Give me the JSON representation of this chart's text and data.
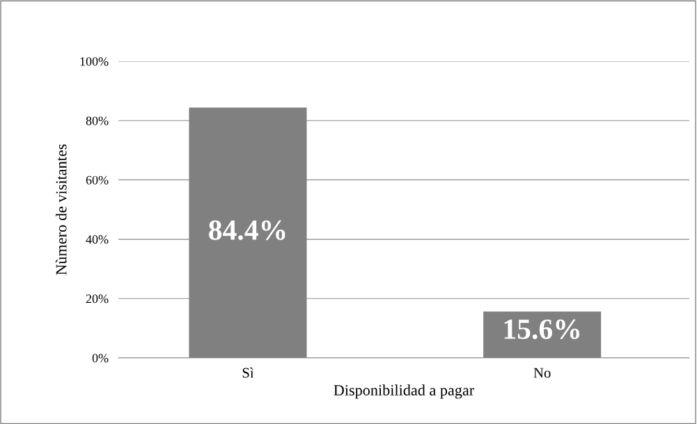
{
  "chart_data": {
    "type": "bar",
    "xlabel": "Disponibilidad a pagar",
    "ylabel": "Nùmero de visitantes",
    "categories": [
      "Sì",
      "No"
    ],
    "values": [
      84.4,
      15.6
    ],
    "color": "#808080",
    "value_labels": [
      "84.4%",
      "15.6%"
    ],
    "ylim": [
      0,
      100
    ],
    "yticks": [
      {
        "value": 0,
        "label": "0%"
      },
      {
        "value": 20,
        "label": "20%"
      },
      {
        "value": 40,
        "label": "40%"
      },
      {
        "value": 60,
        "label": "60%"
      },
      {
        "value": 80,
        "label": "80%"
      },
      {
        "value": 100,
        "label": "100%"
      }
    ],
    "grid": "y",
    "legend": false
  }
}
